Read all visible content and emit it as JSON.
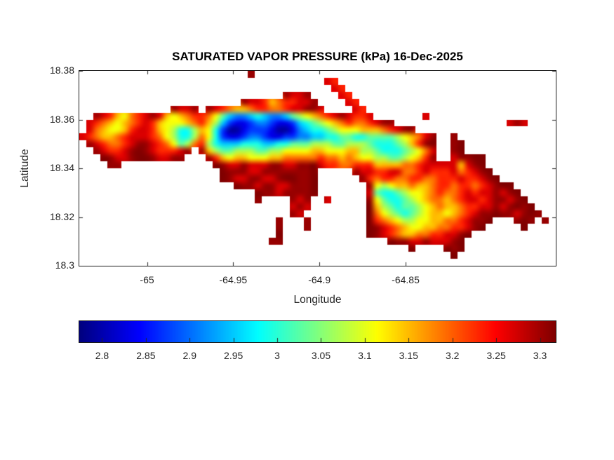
{
  "chart_data": {
    "type": "heatmap",
    "title": "SATURATED VAPOR PRESSURE (kPa) 16-Dec-2025",
    "xlabel": "Longitude",
    "ylabel": "Latitude",
    "units": "kPa",
    "colormap": "jet",
    "grid_on": false,
    "x_range": [
      -65.0393,
      -64.7629
    ],
    "y_range": [
      18.3,
      18.38
    ],
    "x_ticks": {
      "values": [
        -65,
        -64.95,
        -64.9,
        -64.85
      ],
      "labels": [
        "-65",
        "-64.95",
        "-64.9",
        "-64.85"
      ]
    },
    "y_ticks": {
      "values": [
        18.38,
        18.36,
        18.34,
        18.32,
        18.3
      ],
      "labels": [
        "18.38",
        "18.36",
        "18.34",
        "18.32",
        "18.3"
      ]
    },
    "color_range": [
      2.774,
      3.318
    ],
    "colorbar": {
      "orientation": "horizontal",
      "tick_values": [
        2.8,
        2.85,
        2.9,
        2.95,
        3,
        3.05,
        3.1,
        3.15,
        3.2,
        3.25,
        3.3
      ],
      "tick_labels": [
        "2.8",
        "2.85",
        "2.9",
        "2.95",
        "3",
        "3.05",
        "3.1",
        "3.15",
        "3.2",
        "3.25",
        "3.3"
      ]
    },
    "grid": {
      "cols": 68,
      "rows_count": 28,
      "no_data": ".",
      "levels": {
        "0": 2.79,
        "1": 2.83,
        "2": 2.87,
        "3": 2.91,
        "4": 2.95,
        "5": 2.99,
        "6": 3.03,
        "7": 3.07,
        "8": 3.11,
        "9": 3.15,
        "A": 3.19,
        "B": 3.23,
        "C": 3.27,
        "D": 3.305,
        "E": 3.33
      },
      "rows": [
        "........................D",
        "...................................CB",
        "....................................CB",
        ".............................DCCD....CB",
        ".......................DCCB9ABBCCD....CB",
        ".............DCCD.DCBA99ABBAABCCDDC....CB",
        "..DCB98ABCDC989ABBA864334543346789ABCDCBBC.......C",
        ".CBA989ABCB98889AB9742112332112456789ABAABCDD................CDC",
        ".CA9889BCCB98755798520012221001345567888999ABCDD",
        "CBA99ABCCCBA87557A852112332112233445566556666789ACD..D",
        ".DCBAABCDDCBA867AB754445554455666777667776555679BDE..DE",
        "..DCBBCDEDCBBBCD.D9766777667788889988899776555678AC..DE",
        "...EDCCDEEDCCDD...DB989988899AAAAABAA9A9887766789BD..CDDEE",
        "....DD.............EDCCDCCCDDCCDDECBBAABBB9999AABCCCCC9CDE",
        "....................EDDDCCDDDDDDDE.....DCCBBCCAABCBBBCABCDE",
        "....................EDCCDDCCDEEDDE......DBABBAABBAABBBCBBCDE",
        "......................EDDCDDCCDDDE.......D87899A99ABBABBABCDEE",
        ".........................EDDCDDDDE.......C65567889ABAABCBCCDCDE",
        ".........................D....DCD..C.....D86556789AA9ABCCBCDDCDE",
        "..............................CDC........E976566789A99ABBCCDCDEDE",
        "..............................DC.........EA87656789989ABCDDEDDCDED",
        "............................D...D........EBA98778899AABCDDE...DED.D",
        "............................D...D........EDCBA98899AABBCDE.....E",
        "............................E............EDCBA99AABBCCDE",
        "...........................DD...............EDDCCDCCCDE",
        "...............................................E....EDE",
        ".....................................................E",
        ""
      ]
    },
    "style": {
      "axis_color": "#262626",
      "title_color": "#000000",
      "background": "#ffffff"
    }
  }
}
